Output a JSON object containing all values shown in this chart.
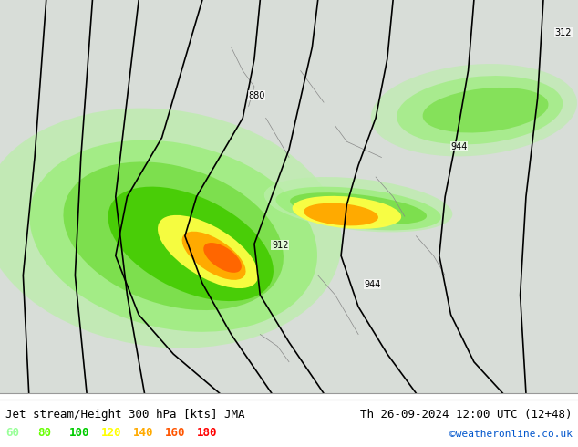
{
  "title_left": "Jet stream/Height 300 hPa [kts] JMA",
  "title_right": "Th 26-09-2024 12:00 UTC (12+48)",
  "credit": "©weatheronline.co.uk",
  "legend_values": [
    "60",
    "80",
    "100",
    "120",
    "140",
    "160",
    "180"
  ],
  "legend_colors": [
    "#99ff99",
    "#66ff00",
    "#00cc00",
    "#ffff00",
    "#ffaa00",
    "#ff5500",
    "#ff0000"
  ],
  "bg_color": "#ffffff",
  "text_color": "#000000",
  "title_fontsize": 9,
  "legend_fontsize": 9,
  "credit_color": "#0055cc",
  "figsize": [
    6.34,
    4.9
  ],
  "dpi": 100
}
